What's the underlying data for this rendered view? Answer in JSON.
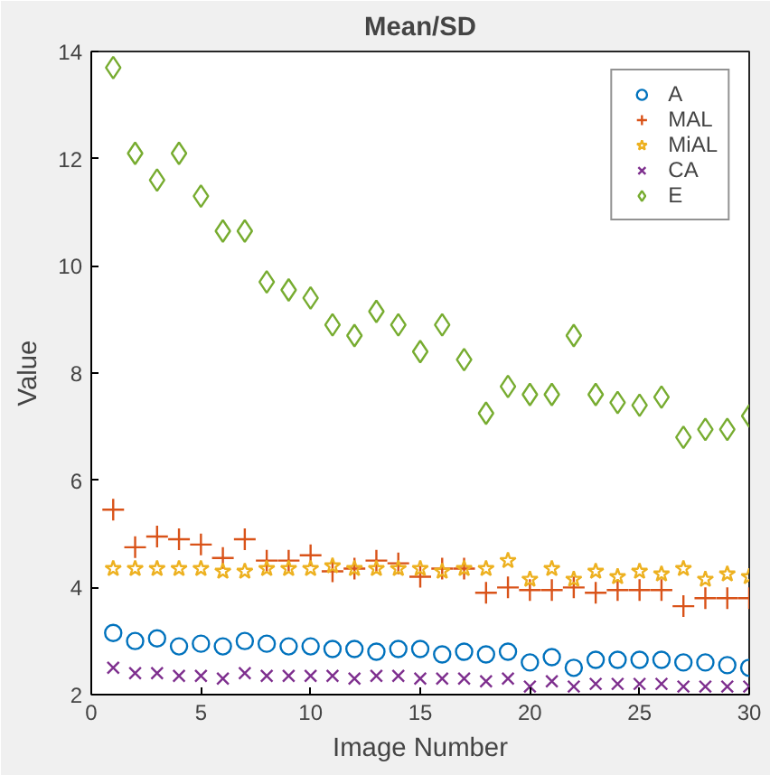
{
  "chart_data": {
    "type": "scatter",
    "title": "Mean/SD",
    "xlabel": "Image Number",
    "ylabel": "Value",
    "x": [
      1,
      2,
      3,
      4,
      5,
      6,
      7,
      8,
      9,
      10,
      11,
      12,
      13,
      14,
      15,
      16,
      17,
      18,
      19,
      20,
      21,
      22,
      23,
      24,
      25,
      26,
      27,
      28,
      29,
      30
    ],
    "xlim": [
      0,
      30
    ],
    "ylim": [
      2,
      14
    ],
    "xticks": [
      0,
      5,
      10,
      15,
      20,
      25,
      30
    ],
    "yticks": [
      2,
      4,
      6,
      8,
      10,
      12,
      14
    ],
    "grid": false,
    "legend": "top right",
    "series": [
      {
        "name": "A",
        "color": "#0072bd",
        "marker": "circle",
        "values": [
          3.15,
          3.0,
          3.05,
          2.9,
          2.95,
          2.9,
          3.0,
          2.95,
          2.9,
          2.9,
          2.85,
          2.85,
          2.8,
          2.85,
          2.85,
          2.75,
          2.8,
          2.75,
          2.8,
          2.6,
          2.7,
          2.5,
          2.65,
          2.65,
          2.65,
          2.65,
          2.6,
          2.6,
          2.55,
          2.5
        ]
      },
      {
        "name": "MAL",
        "color": "#d95319",
        "marker": "cross",
        "values": [
          5.45,
          4.75,
          4.95,
          4.9,
          4.8,
          4.55,
          4.9,
          4.5,
          4.5,
          4.6,
          4.3,
          4.35,
          4.5,
          4.45,
          4.2,
          4.35,
          4.35,
          3.9,
          4.0,
          3.95,
          3.95,
          4.0,
          3.9,
          3.95,
          3.95,
          3.95,
          3.65,
          3.8,
          3.8,
          3.8
        ]
      },
      {
        "name": "MiAL",
        "color": "#edb120",
        "marker": "star",
        "values": [
          4.35,
          4.35,
          4.35,
          4.35,
          4.35,
          4.3,
          4.3,
          4.35,
          4.35,
          4.35,
          4.4,
          4.35,
          4.35,
          4.35,
          4.35,
          4.3,
          4.35,
          4.35,
          4.5,
          4.15,
          4.35,
          4.15,
          4.3,
          4.2,
          4.3,
          4.25,
          4.35,
          4.15,
          4.25,
          4.2
        ]
      },
      {
        "name": "CA",
        "color": "#7e2f8e",
        "marker": "x",
        "values": [
          2.5,
          2.4,
          2.4,
          2.35,
          2.35,
          2.3,
          2.4,
          2.35,
          2.35,
          2.35,
          2.35,
          2.3,
          2.35,
          2.35,
          2.3,
          2.3,
          2.3,
          2.25,
          2.3,
          2.15,
          2.25,
          2.15,
          2.2,
          2.2,
          2.2,
          2.2,
          2.15,
          2.15,
          2.15,
          2.15
        ]
      },
      {
        "name": "E",
        "color": "#77ac30",
        "marker": "diamond",
        "values": [
          13.7,
          12.1,
          11.6,
          12.1,
          11.3,
          10.65,
          10.65,
          9.7,
          9.55,
          9.4,
          8.9,
          8.7,
          9.15,
          8.9,
          8.4,
          8.9,
          8.25,
          7.25,
          7.75,
          7.6,
          7.6,
          8.7,
          7.6,
          7.45,
          7.4,
          7.55,
          6.8,
          6.95,
          6.95,
          7.2
        ]
      }
    ]
  }
}
